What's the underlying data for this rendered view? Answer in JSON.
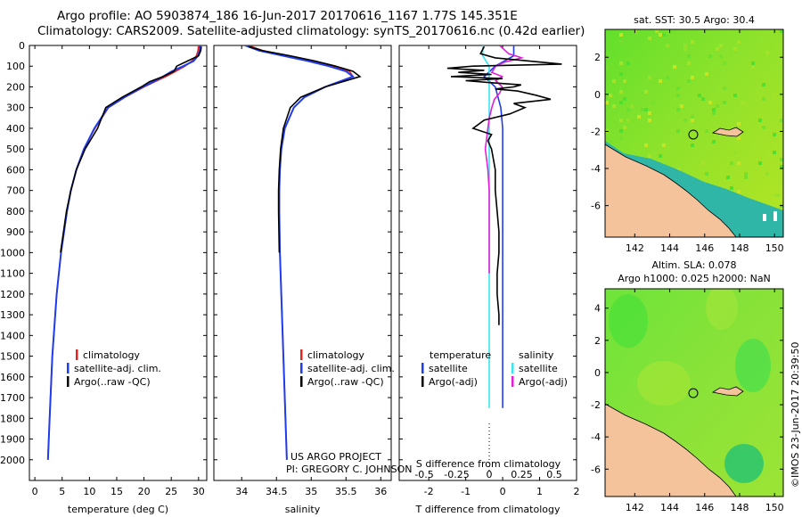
{
  "titles": {
    "line1": "Argo profile: AO 5903874_186 16-Jun-2017 20170616_1167 1.77S 145.351E",
    "line2": "Climatology: CARS2009. Satellite-adjusted climatology: synTS_20170616.nc (0.42d earlier)"
  },
  "colors": {
    "climatology": "#e8231f",
    "satellite": "#1f3df0",
    "argo": "#000000",
    "sal_satellite": "#38e6f0",
    "sal_argo": "#e21fd8",
    "land": "#f4c39b"
  },
  "credits": {
    "line1": "US ARGO PROJECT",
    "line2": "PI: GREGORY C. JOHNSON",
    "imos": "©IMOS 23-Jun-2017 20:39:50"
  },
  "chart_data": [
    {
      "id": "temperature",
      "type": "line",
      "xlabel": "temperature (deg C)",
      "ylabel": "",
      "xlim": [
        -1,
        31.5
      ],
      "ylim": [
        2100,
        0
      ],
      "xticks": [
        0,
        5,
        10,
        15,
        20,
        25,
        30
      ],
      "yticks": [
        0,
        100,
        200,
        300,
        400,
        500,
        600,
        700,
        800,
        900,
        1000,
        1100,
        1200,
        1300,
        1400,
        1500,
        1600,
        1700,
        1800,
        1900,
        2000
      ],
      "legend": [
        "climatology",
        "satellite-adj. clim.",
        "Argo(..raw -QC)"
      ],
      "series": [
        {
          "name": "climatology",
          "depth": [
            0,
            25,
            50,
            75,
            100,
            125,
            150,
            175,
            200,
            250,
            300,
            400,
            500,
            600,
            700,
            800,
            1000,
            1200,
            1500,
            1800,
            2000
          ],
          "values": [
            30.0,
            29.9,
            29.6,
            28.8,
            27.5,
            25.8,
            24.0,
            22.0,
            20.0,
            16.5,
            13.5,
            11.0,
            9.0,
            7.6,
            6.6,
            5.9,
            4.8,
            4.0,
            3.2,
            2.7,
            2.4
          ]
        },
        {
          "name": "satellite-adj. clim.",
          "depth": [
            0,
            25,
            50,
            75,
            100,
            125,
            150,
            175,
            200,
            250,
            300,
            400,
            500,
            600,
            700,
            800,
            1000,
            1200,
            1500,
            1800,
            2000
          ],
          "values": [
            30.3,
            30.2,
            29.9,
            29.1,
            27.2,
            25.1,
            23.5,
            21.7,
            19.8,
            16.4,
            13.4,
            10.9,
            9.0,
            7.6,
            6.6,
            5.9,
            4.8,
            4.0,
            3.2,
            2.7,
            2.4
          ]
        },
        {
          "name": "Argo(..raw -QC)",
          "depth": [
            5,
            25,
            50,
            75,
            100,
            125,
            150,
            175,
            200,
            250,
            300,
            400,
            500,
            600,
            700,
            800,
            1000
          ],
          "values": [
            30.5,
            30.4,
            30.0,
            28.0,
            26.0,
            25.5,
            23.5,
            21.0,
            19.5,
            16.0,
            13.0,
            11.5,
            9.2,
            7.6,
            6.6,
            5.8,
            4.7
          ]
        }
      ]
    },
    {
      "id": "salinity",
      "type": "line",
      "xlabel": "salinity",
      "ylabel": "",
      "xlim": [
        33.6,
        36.15
      ],
      "ylim": [
        2100,
        0
      ],
      "xticks": [
        34,
        34.5,
        35,
        35.5,
        36
      ],
      "legend": [
        "climatology",
        "satellite-adj. clim.",
        "Argo(..raw -QC)"
      ],
      "series": [
        {
          "name": "climatology",
          "depth": [
            0,
            25,
            50,
            75,
            100,
            125,
            150,
            175,
            200,
            250,
            300,
            400,
            500,
            600,
            700,
            800,
            1000,
            1500,
            2000
          ],
          "values": [
            34.1,
            34.3,
            34.65,
            35.0,
            35.3,
            35.55,
            35.6,
            35.4,
            35.2,
            34.9,
            34.75,
            34.62,
            34.57,
            34.55,
            34.54,
            34.54,
            34.55,
            34.6,
            34.65
          ]
        },
        {
          "name": "satellite-adj. clim.",
          "depth": [
            0,
            25,
            50,
            75,
            100,
            125,
            150,
            175,
            200,
            250,
            300,
            400,
            500,
            600,
            700,
            800,
            1000,
            1500,
            2000
          ],
          "values": [
            34.05,
            34.25,
            34.6,
            34.95,
            35.25,
            35.5,
            35.6,
            35.4,
            35.2,
            34.9,
            34.75,
            34.62,
            34.57,
            34.55,
            34.54,
            34.54,
            34.55,
            34.6,
            34.65
          ]
        },
        {
          "name": "Argo(..raw -QC)",
          "depth": [
            5,
            25,
            50,
            75,
            100,
            125,
            150,
            175,
            200,
            250,
            300,
            400,
            500,
            600,
            700,
            800,
            1000
          ],
          "values": [
            34.1,
            34.3,
            34.7,
            35.05,
            35.35,
            35.6,
            35.7,
            35.45,
            35.2,
            34.85,
            34.7,
            34.6,
            34.56,
            34.54,
            34.53,
            34.53,
            34.54
          ]
        }
      ]
    },
    {
      "id": "difference",
      "type": "line",
      "xlabel": "T difference from climatology",
      "xlabel2": "S difference from climatology",
      "xlim": [
        -2.8,
        2.0
      ],
      "ylim": [
        2100,
        0
      ],
      "xticks": [
        -2,
        -1,
        0,
        1,
        2
      ],
      "xticks_salinity": [
        -0.5,
        -0.25,
        0,
        0.25,
        0.5
      ],
      "legend_titles": [
        "temperature",
        "salinity"
      ],
      "legend": [
        "satellite",
        "Argo(-adj)",
        "satellite",
        "Argo(-adj)"
      ],
      "series": [
        {
          "name": "temperature satellite",
          "depth": [
            0,
            50,
            100,
            150,
            200,
            300,
            400,
            500,
            600,
            800,
            1000,
            1200,
            1400,
            1750
          ],
          "values": [
            0.3,
            0.3,
            -0.2,
            -0.5,
            -0.2,
            -0.05,
            0,
            0,
            0,
            0,
            0,
            0,
            0,
            0
          ]
        },
        {
          "name": "salinity satellite",
          "depth": [
            0,
            50,
            100,
            150,
            200,
            300,
            400,
            600,
            800,
            1000,
            1200,
            1400,
            1750
          ],
          "values": [
            -0.05,
            -0.05,
            0,
            0,
            0,
            0,
            0,
            0,
            0,
            0,
            0,
            0,
            0
          ]
        },
        {
          "name": "salinity Argo(-adj)",
          "depth": [
            0,
            40,
            60,
            80,
            100,
            130,
            150,
            170,
            200,
            230,
            260,
            300,
            350,
            400,
            450,
            500,
            550,
            600,
            700,
            1100
          ],
          "values": [
            0.08,
            0.15,
            0.25,
            0.12,
            0.05,
            0.02,
            0.1,
            0.05,
            0.1,
            0.08,
            0.04,
            0.02,
            0.0,
            -0.01,
            -0.02,
            -0.03,
            -0.02,
            -0.01,
            0.0,
            0.0
          ]
        },
        {
          "name": "temperature Argo(-adj)",
          "depth": [
            5,
            40,
            60,
            80,
            90,
            100,
            110,
            120,
            130,
            140,
            150,
            160,
            170,
            180,
            190,
            200,
            210,
            220,
            240,
            260,
            280,
            300,
            330,
            360,
            400,
            430,
            460,
            500,
            600,
            700,
            800,
            900,
            1000,
            1100,
            1200,
            1300,
            1350
          ],
          "values": [
            -0.5,
            -0.6,
            -0.2,
            1.0,
            1.6,
            -0.8,
            -1.5,
            -0.5,
            -1.2,
            -0.3,
            -1.4,
            0.0,
            -1.0,
            -0.3,
            0.5,
            0.3,
            -0.2,
            0.4,
            0.9,
            1.3,
            0.3,
            0.6,
            0.2,
            -0.5,
            -0.8,
            -0.3,
            -0.4,
            -0.3,
            -0.2,
            -0.2,
            -0.15,
            -0.1,
            -0.1,
            -0.15,
            -0.15,
            -0.1,
            -0.1
          ]
        }
      ]
    },
    {
      "id": "sst_map",
      "type": "heatmap",
      "title": "sat. SST: 30.5  Argo: 30.4",
      "xticks": [
        142,
        144,
        146,
        148,
        150
      ],
      "yticks": [
        -6,
        -4,
        -2,
        0,
        2
      ],
      "xlim": [
        140.3,
        150.5
      ],
      "ylim": [
        -7.7,
        3.5
      ],
      "marker": {
        "lon": 145.351,
        "lat": -1.77
      }
    },
    {
      "id": "sla_map",
      "type": "heatmap",
      "title": "Altim. SLA: 0.078",
      "subtitle": "Argo h1000: 0.025  h2000: NaN",
      "xticks": [
        142,
        144,
        146,
        148,
        150
      ],
      "yticks": [
        -6,
        -4,
        -2,
        0,
        2,
        4
      ],
      "xlim": [
        140.3,
        150.5
      ],
      "ylim": [
        -7.7,
        5.2
      ],
      "marker": {
        "lon": 145.351,
        "lat": -1.77
      }
    }
  ]
}
